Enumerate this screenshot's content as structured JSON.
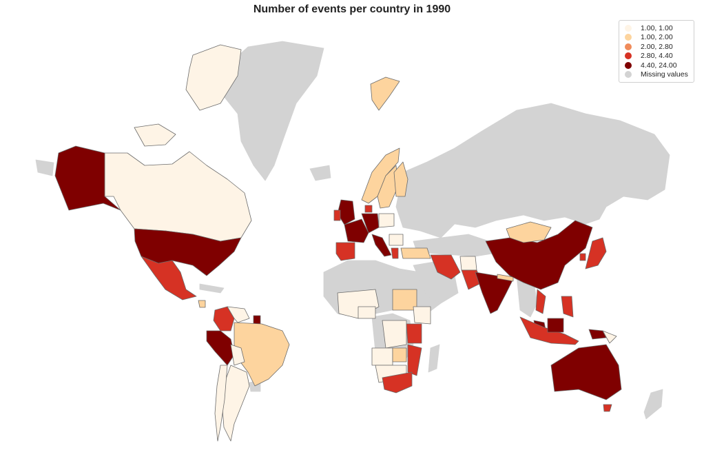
{
  "title": "Number of events per country in 1990",
  "legend": {
    "items": [
      {
        "label": "1.00,  1.00",
        "color": "#fef4e6"
      },
      {
        "label": "1.00,  2.00",
        "color": "#fdd49e"
      },
      {
        "label": "2.00,  2.80",
        "color": "#f08b5a"
      },
      {
        "label": "2.80,  4.40",
        "color": "#d63224"
      },
      {
        "label": "4.40, 24.00",
        "color": "#7f0000"
      },
      {
        "label": "Missing values",
        "color": "#d3d3d3"
      }
    ]
  },
  "colors": {
    "missing": "#d3d3d3",
    "border": "#6b6b6b",
    "background": "#ffffff"
  },
  "map": {
    "projection": "mercator",
    "countries": [
      {
        "name": "Canada",
        "class": 0
      },
      {
        "name": "United States",
        "class": 4
      },
      {
        "name": "Mexico",
        "class": 3
      },
      {
        "name": "Guatemala",
        "class": 3
      },
      {
        "name": "Nicaragua",
        "class": 1
      },
      {
        "name": "Colombia",
        "class": 3
      },
      {
        "name": "Venezuela",
        "class": 0
      },
      {
        "name": "Suriname",
        "class": 4
      },
      {
        "name": "Peru",
        "class": 4
      },
      {
        "name": "Brazil",
        "class": 1
      },
      {
        "name": "Bolivia",
        "class": 0
      },
      {
        "name": "Chile",
        "class": 0
      },
      {
        "name": "Argentina",
        "class": 0
      },
      {
        "name": "Norway",
        "class": 1
      },
      {
        "name": "Sweden",
        "class": 1
      },
      {
        "name": "Finland",
        "class": 1
      },
      {
        "name": "Svalbard",
        "class": 1
      },
      {
        "name": "United Kingdom",
        "class": 4
      },
      {
        "name": "Ireland",
        "class": 3
      },
      {
        "name": "Denmark",
        "class": 3
      },
      {
        "name": "France",
        "class": 4
      },
      {
        "name": "Germany",
        "class": 4
      },
      {
        "name": "Poland",
        "class": 0
      },
      {
        "name": "Italy",
        "class": 4
      },
      {
        "name": "Spain",
        "class": 3
      },
      {
        "name": "Greece",
        "class": 3
      },
      {
        "name": "Turkey",
        "class": 1
      },
      {
        "name": "Iran",
        "class": 3
      },
      {
        "name": "Afghanistan",
        "class": 0
      },
      {
        "name": "Pakistan",
        "class": 3
      },
      {
        "name": "India",
        "class": 4
      },
      {
        "name": "Nepal",
        "class": 1
      },
      {
        "name": "China",
        "class": 4
      },
      {
        "name": "Mongolia",
        "class": 1
      },
      {
        "name": "Japan",
        "class": 3
      },
      {
        "name": "South Korea",
        "class": 3
      },
      {
        "name": "Vietnam",
        "class": 3
      },
      {
        "name": "Philippines",
        "class": 3
      },
      {
        "name": "Indonesia",
        "class": 3
      },
      {
        "name": "Malaysia",
        "class": 4
      },
      {
        "name": "Papua New Guinea",
        "class": 4
      },
      {
        "name": "Australia",
        "class": 4
      },
      {
        "name": "Sudan",
        "class": 1
      },
      {
        "name": "Tanzania",
        "class": 3
      },
      {
        "name": "Mozambique",
        "class": 3
      },
      {
        "name": "Zimbabwe",
        "class": 1
      },
      {
        "name": "South Africa",
        "class": 3
      },
      {
        "name": "Nigeria",
        "class": 0
      },
      {
        "name": "DR Congo",
        "class": 0
      },
      {
        "name": "Kenya",
        "class": 0
      },
      {
        "name": "Angola",
        "class": 0
      }
    ]
  }
}
